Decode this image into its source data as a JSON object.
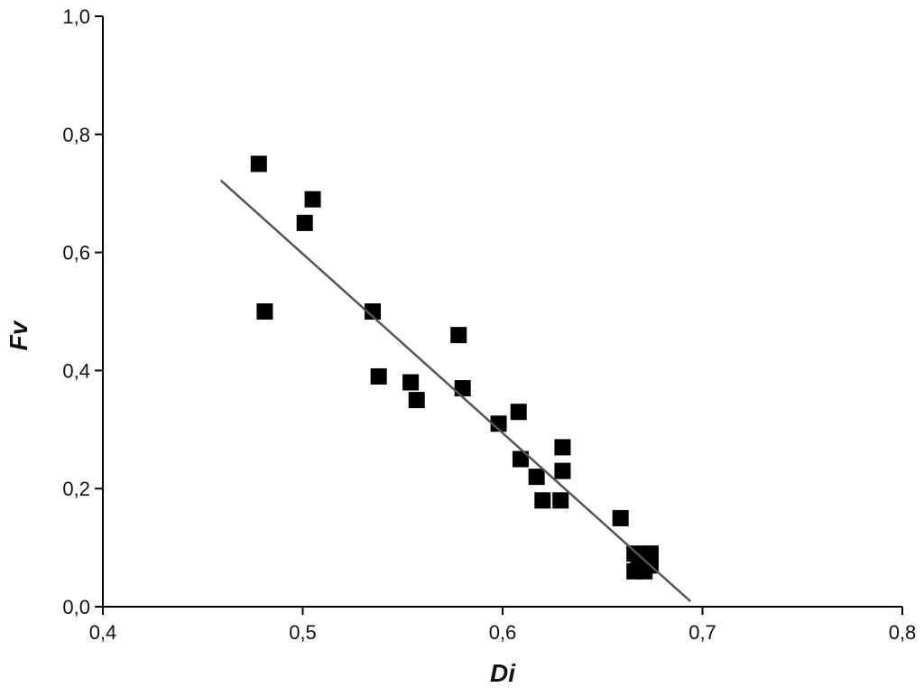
{
  "chart_data": {
    "type": "scatter",
    "x_label": "Di",
    "y_label": "Fv",
    "series": [
      {
        "color": "#000000",
        "x": [
          0.478,
          0.481,
          0.501,
          0.505,
          0.535,
          0.538,
          0.554,
          0.557,
          0.578,
          0.58,
          0.598,
          0.608,
          0.609,
          0.617,
          0.62,
          0.629,
          0.63,
          0.63,
          0.659,
          0.666,
          0.674,
          0.666,
          0.671,
          0.674,
          0.668
        ],
        "values": [
          0.75,
          0.5,
          0.65,
          0.69,
          0.5,
          0.39,
          0.38,
          0.35,
          0.46,
          0.37,
          0.31,
          0.33,
          0.25,
          0.22,
          0.18,
          0.18,
          0.27,
          0.23,
          0.15,
          0.09,
          0.09,
          0.06,
          0.06,
          0.07,
          0.07
        ]
      }
    ],
    "fit": {
      "color": "#555555",
      "x": [
        0.459,
        0.694
      ],
      "values": [
        0.722,
        0.009
      ]
    },
    "xlim": [
      0.4,
      0.8
    ],
    "xticks": [
      {
        "value": 0.4,
        "label": "0,4"
      },
      {
        "value": 0.5,
        "label": "0,5"
      },
      {
        "value": 0.6,
        "label": "0,6"
      },
      {
        "value": 0.7,
        "label": "0,7"
      },
      {
        "value": 0.8,
        "label": "0,8"
      }
    ],
    "ylim": [
      0,
      1.0
    ],
    "yticks": [
      {
        "value": 0,
        "label": "0,0"
      },
      {
        "value": 0.2,
        "label": "0,2"
      },
      {
        "value": 0.4,
        "label": "0,4"
      },
      {
        "value": 0.6,
        "label": "0,6"
      },
      {
        "value": 0.8,
        "label": "0,8"
      },
      {
        "value": 1.0,
        "label": "1,0"
      }
    ]
  }
}
